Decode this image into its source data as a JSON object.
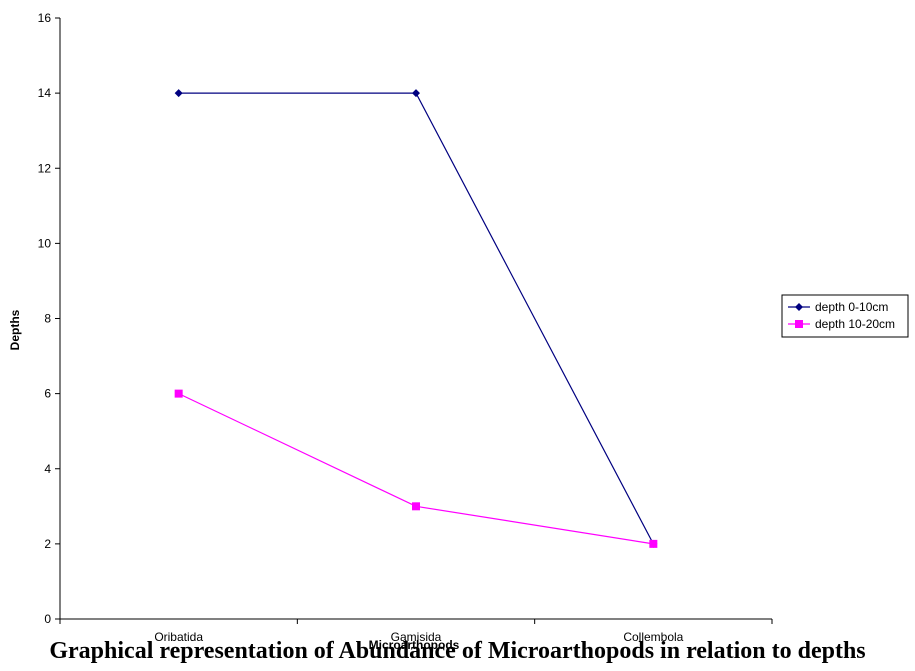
{
  "chart_data": {
    "type": "line",
    "categories": [
      "Oribatida",
      "Gamisida",
      "Collembola"
    ],
    "series": [
      {
        "name": "depth 0-10cm",
        "values": [
          14,
          14,
          2
        ],
        "color": "#000080",
        "marker": "diamond"
      },
      {
        "name": "depth 10-20cm",
        "values": [
          6,
          3,
          2
        ],
        "color": "#FF00FF",
        "marker": "square"
      }
    ],
    "ylabel": "Depths",
    "xlabel": "Microarthopods",
    "ylim": [
      0,
      16
    ],
    "yticks": [
      0,
      2,
      4,
      6,
      8,
      10,
      12,
      14,
      16
    ],
    "grid": false,
    "legend_position": "right"
  },
  "caption": "Graphical representation of Abundance of Microarthopods in relation to depths"
}
